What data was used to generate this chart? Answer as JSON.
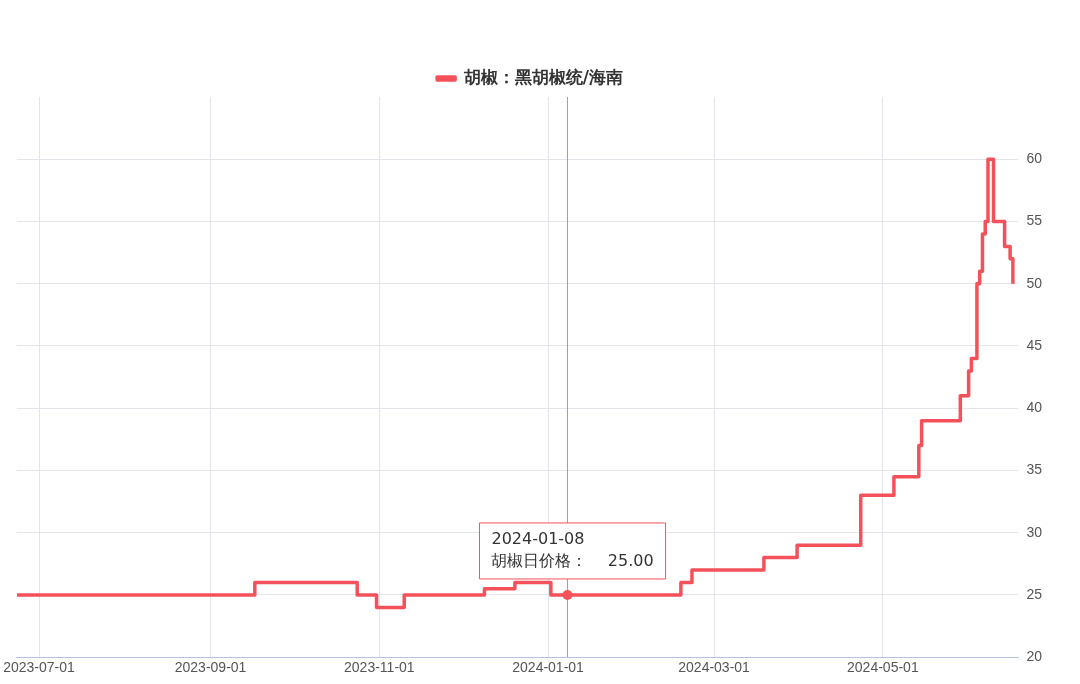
{
  "chart_data": {
    "type": "step",
    "legend": "top",
    "ref_lines": [
      {
        "axis": "x",
        "value": "2024-01-08",
        "color": "#9a9ea8"
      }
    ],
    "grid": true,
    "marker": "none",
    "xlim": [
      "2023-06-23",
      "2024-06-19"
    ],
    "xticks": [
      "2023-07-01",
      "2023-09-01",
      "2023-11-01",
      "2024-01-01",
      "2024-03-01",
      "2024-05-01"
    ],
    "ylim": [
      20,
      65
    ],
    "yticks": [
      20,
      25,
      30,
      35,
      40,
      45,
      50,
      55,
      60
    ],
    "annotations": [
      {
        "text": "2024-01-08\n胡椒日价格：    25.00",
        "x": "2024-01-08",
        "y": 25
      }
    ],
    "series": [
      {
        "name": "胡椒：黑胡椒统/海南",
        "color": "#f4515b",
        "x": [
          "2023-06-23",
          "2023-09-17",
          "2023-10-24",
          "2023-10-31",
          "2023-11-10",
          "2023-12-09",
          "2023-12-20",
          "2024-01-02",
          "2024-02-18",
          "2024-02-22",
          "2024-03-19",
          "2024-03-31",
          "2024-04-23",
          "2024-05-05",
          "2024-05-14",
          "2024-05-15",
          "2024-05-16",
          "2024-05-29",
          "2024-06-01",
          "2024-06-02",
          "2024-06-03",
          "2024-06-04",
          "2024-06-05",
          "2024-06-06",
          "2024-06-07",
          "2024-06-08",
          "2024-06-09",
          "2024-06-10",
          "2024-06-13",
          "2024-06-14",
          "2024-06-15",
          "2024-06-16",
          "2024-06-17"
        ],
        "values": [
          25,
          26,
          25,
          24,
          25,
          25.5,
          26,
          25,
          26,
          27,
          28,
          29,
          33,
          34.5,
          37,
          39,
          39,
          41,
          43,
          44,
          44,
          50,
          51,
          54,
          55,
          60,
          60,
          55,
          55,
          53,
          53,
          52,
          50
        ]
      }
    ]
  }
}
